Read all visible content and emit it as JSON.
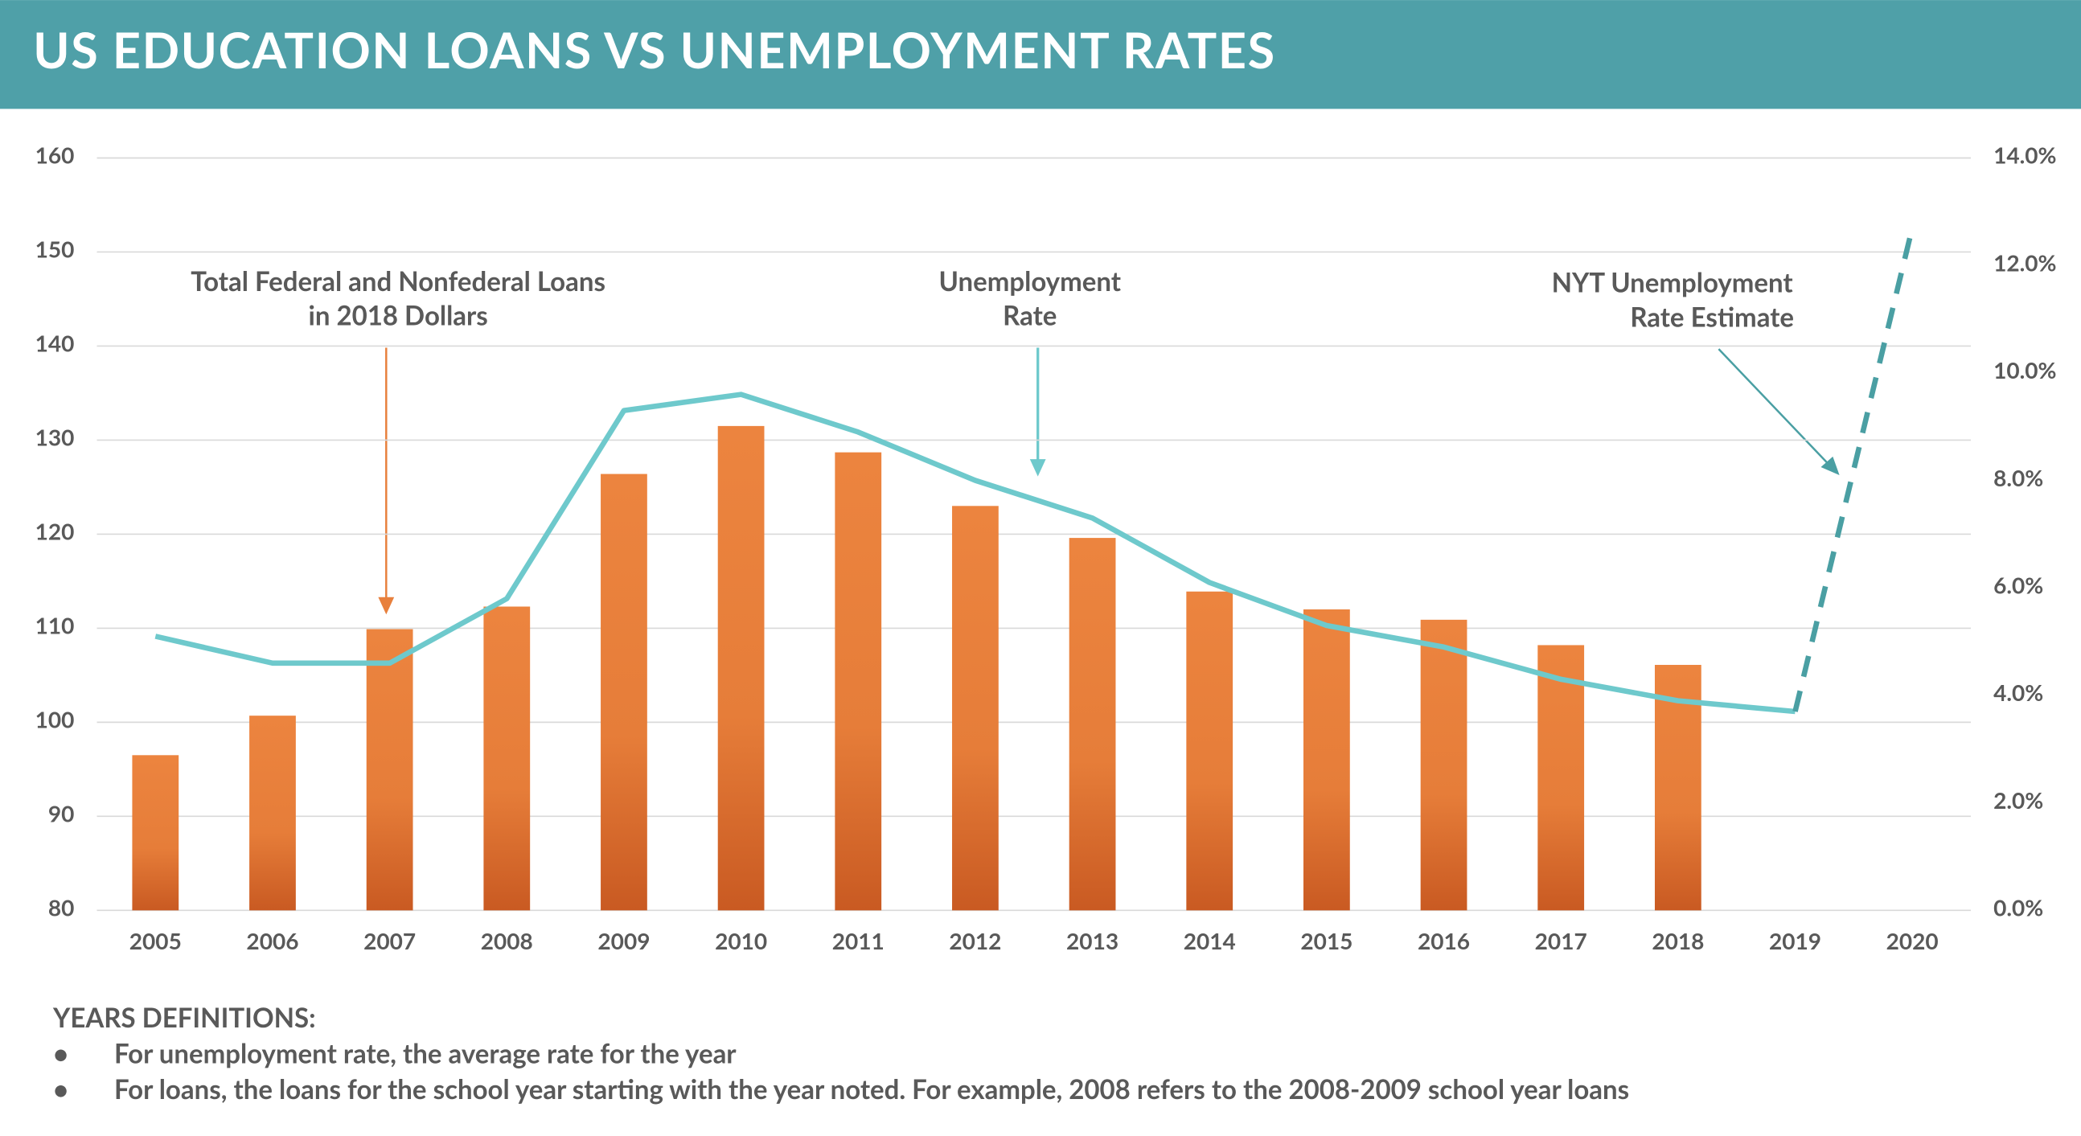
{
  "chart_data": {
    "type": "bar-line",
    "title": "US EDUCATION LOANS VS UNEMPLOYMENT RATES",
    "categories": [
      "2005",
      "2006",
      "2007",
      "2008",
      "2009",
      "2010",
      "2011",
      "2012",
      "2013",
      "2014",
      "2015",
      "2016",
      "2017",
      "2018",
      "2019",
      "2020"
    ],
    "series": [
      {
        "type": "bar",
        "color": "#e8803d",
        "values": [
          96.5,
          100.7,
          109.9,
          112.3,
          126.4,
          131.5,
          128.7,
          123.0,
          119.6,
          113.9,
          112.0,
          110.9,
          108.2,
          106.1,
          null,
          null
        ]
      },
      {
        "type": "line",
        "axis": "y2",
        "color": "#6ec9cc",
        "values": [
          5.1,
          4.6,
          4.6,
          5.8,
          9.3,
          9.6,
          8.9,
          8.0,
          7.3,
          6.1,
          5.3,
          4.9,
          4.3,
          3.9,
          3.7,
          null
        ]
      },
      {
        "type": "line",
        "axis": "y2",
        "dashed": true,
        "color": "#4a9fa3",
        "values": [
          null,
          null,
          null,
          null,
          null,
          null,
          null,
          null,
          null,
          null,
          null,
          null,
          null,
          null,
          3.7,
          12.7
        ]
      }
    ],
    "ylim": [
      80,
      160
    ],
    "yticks": [
      80,
      90,
      100,
      110,
      120,
      130,
      140,
      150,
      160
    ],
    "y2lim": [
      0,
      14
    ],
    "y2ticks": [
      {
        "value": 0,
        "label": "0.0%"
      },
      {
        "value": 2,
        "label": "2.0%"
      },
      {
        "value": 4,
        "label": "4.0%"
      },
      {
        "value": 6,
        "label": "6.0%"
      },
      {
        "value": 8,
        "label": "8.0%"
      },
      {
        "value": 10,
        "label": "10.0%"
      },
      {
        "value": 12,
        "label": "12.0%"
      },
      {
        "value": 14,
        "label": "14.0%"
      }
    ],
    "grid": true,
    "annotations": [
      {
        "lines": [
          "Total Federal and Nonfederal Loans",
          "in 2018 Dollars"
        ]
      },
      {
        "lines": [
          "Unemployment",
          "Rate"
        ]
      },
      {
        "lines": [
          "NYT Unemployment",
          "Rate Estimate"
        ]
      }
    ],
    "notes": {
      "heading": "YEARS DEFINITIONS:",
      "items": [
        "For unemployment rate, the average rate for the year",
        "For loans, the loans for the school year starting with the year noted. For example, 2008 refers to the 2008-2009 school year loans"
      ]
    }
  }
}
